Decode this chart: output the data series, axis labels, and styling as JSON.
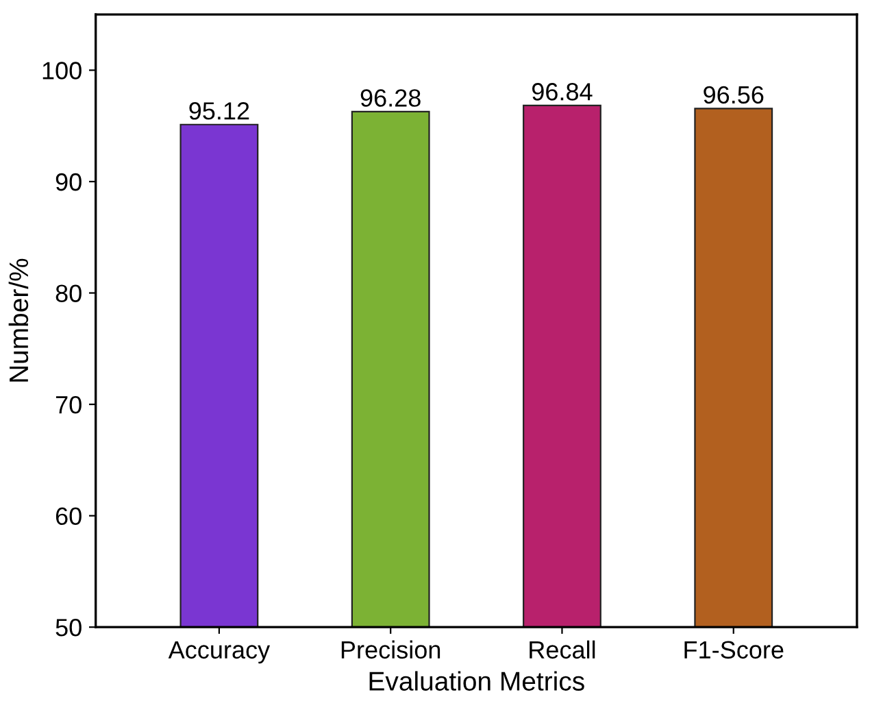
{
  "chart_data": {
    "type": "bar",
    "xlabel": "Evaluation Metrics",
    "ylabel": "Number/%",
    "categories": [
      "Accuracy",
      "Precision",
      "Recall",
      "F1-Score"
    ],
    "values": [
      95.12,
      96.28,
      96.84,
      96.56
    ],
    "colors": [
      "#7a36d2",
      "#7cb234",
      "#b8216c",
      "#b2601f"
    ],
    "ylim": [
      50,
      105
    ],
    "yticks": [
      50,
      60,
      70,
      80,
      90,
      100
    ],
    "grid": false,
    "data_labels": true
  }
}
